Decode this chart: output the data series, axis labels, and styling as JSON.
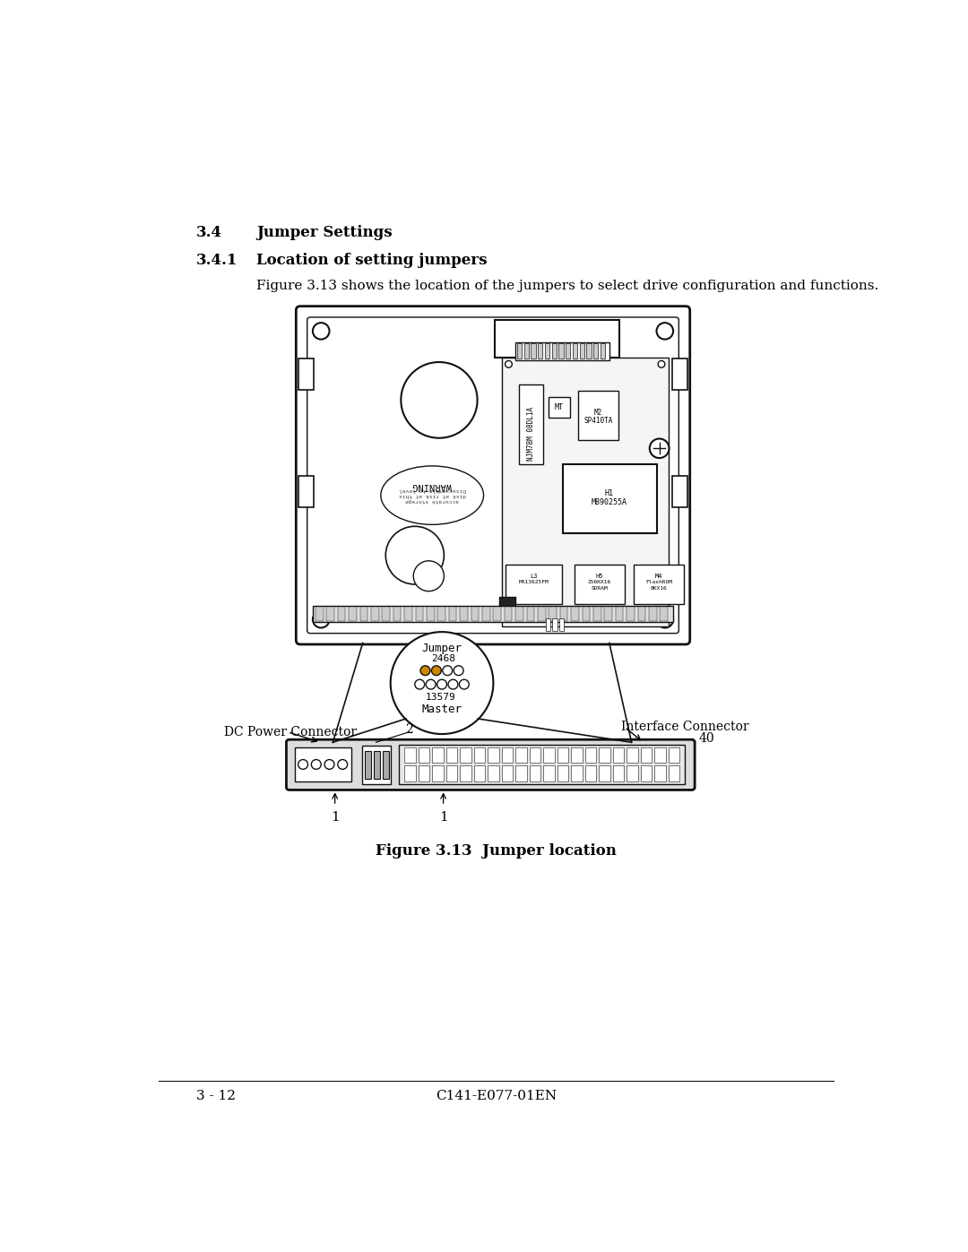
{
  "page_title": "3.4",
  "section_title": "Jumper Settings",
  "subsection_num": "3.4.1",
  "subsection_title": "Location of setting jumpers",
  "body_text": "Figure 3.13 shows the location of the jumpers to select drive configuration and functions.",
  "figure_caption": "Figure 3.13  Jumper location",
  "page_number": "3 - 12",
  "doc_number": "C141-E077-01EN",
  "bg_color": "#ffffff",
  "text_color": "#000000",
  "diagram_color": "#111111"
}
